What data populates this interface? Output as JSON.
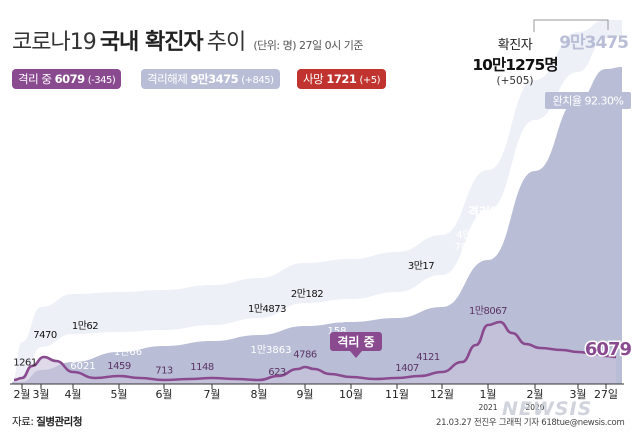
{
  "header": {
    "title_part1": "코로나19",
    "title_part2": "국내 확진자",
    "title_part3": "추이",
    "unit_note": "(단위: 명) 27일 0시 기준"
  },
  "legend": {
    "isolation": {
      "label": "격리 중",
      "value": "6079",
      "change": "(-345)",
      "color": "#8a4a8f"
    },
    "released": {
      "label": "격리해제",
      "value": "9만3475",
      "change": "(+845)",
      "color": "#b9bed6"
    },
    "deaths": {
      "label": "사망",
      "value": "1721",
      "change": "(+5)",
      "color": "#c0332e"
    }
  },
  "confirmed": {
    "label": "확진자",
    "value": "10만1275명",
    "change": "(+505)"
  },
  "released_total_label": "9만3475",
  "recovery_rate_label": "완치율 92.30%",
  "footer": {
    "source_prefix": "자료:",
    "source": "질병관리청",
    "credit": "21.03.27 전진우 그래픽 기자 618tue@newsis.com",
    "watermark": "NEWSIS"
  },
  "chart_data": {
    "type": "area",
    "title": "코로나19 국내 확진자 추이",
    "x_tick_labels": [
      "2월",
      "3월",
      "4월",
      "5월",
      "6월",
      "7월",
      "8월",
      "9월",
      "10월",
      "11월",
      "12월",
      "1월",
      "2월",
      "3월",
      "27일"
    ],
    "x_year_labels": [
      {
        "after_tick": "2월",
        "text": "2020"
      },
      {
        "after_tick": "1월",
        "text": "2021"
      }
    ],
    "series": [
      {
        "name": "확진자",
        "color": "#ffffff",
        "annotations": [
          {
            "x": "3월",
            "value": 7470,
            "label": "7470"
          },
          {
            "x": "4월",
            "value": 10062,
            "label": "1만62"
          },
          {
            "x": "8월",
            "value": 14873,
            "label": "1만4873"
          },
          {
            "x": "9월",
            "value": 20182,
            "label": "2만182"
          },
          {
            "x": "12월",
            "value": 30017,
            "label": "3만17"
          }
        ]
      },
      {
        "name": "격리해제",
        "color": "#b9bed6",
        "annotations": [
          {
            "x": "4월",
            "value": 6021,
            "label": "6021"
          },
          {
            "x": "6월",
            "value": 10066,
            "label": "1만66"
          },
          {
            "x": "8월",
            "value": 13863,
            "label": "1만3863"
          },
          {
            "x": "10월",
            "value": 20158,
            "label": "2만158"
          },
          {
            "x": "1월",
            "value": 40703,
            "label": "4만703"
          },
          {
            "x": "27일",
            "value": 93475,
            "label": "9만3475"
          }
        ]
      },
      {
        "name": "격리 중",
        "color": "#8a4a8f",
        "annotations": [
          {
            "x": "2월",
            "value": 1261,
            "label": "1261"
          },
          {
            "x": "5월",
            "value": 1459,
            "label": "1459"
          },
          {
            "x": "6월",
            "value": 713,
            "label": "713"
          },
          {
            "x": "7월",
            "value": 1148,
            "label": "1148"
          },
          {
            "x": "8월",
            "value": 623,
            "label": "623"
          },
          {
            "x": "9월",
            "value": 4786,
            "label": "4786"
          },
          {
            "x": "11월",
            "value": 1407,
            "label": "1407"
          },
          {
            "x": "12월",
            "value": 4121,
            "label": "4121"
          },
          {
            "x": "1월",
            "value": 18067,
            "label": "1만8067"
          },
          {
            "x": "27일",
            "value": 6079,
            "label": "6079"
          }
        ]
      }
    ],
    "inline_labels": {
      "released_area": "격리해제",
      "isolation_callout": "격리 중"
    }
  }
}
